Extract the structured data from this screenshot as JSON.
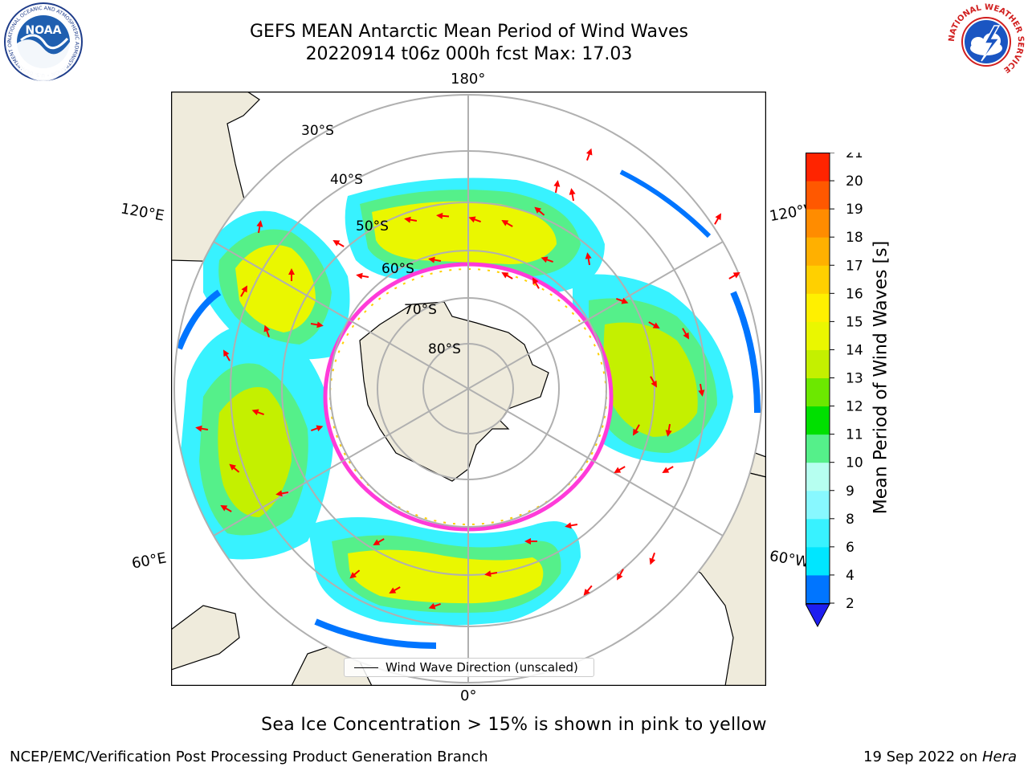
{
  "title": {
    "line1": "GEFS MEAN Antarctic Mean Period of Wind Waves",
    "line2": "20220914 t06z 000h fcst   Max: 17.03"
  },
  "map": {
    "projection": "south-polar-stereographic",
    "longitude_labels": {
      "top": "180°",
      "bottom": "0°",
      "left_upper": "120°E",
      "right_upper": "120°W",
      "left_lower": "60°E",
      "right_lower": "60°W"
    },
    "latitude_labels": [
      "30°S",
      "40°S",
      "50°S",
      "60°S",
      "70°S",
      "80°S"
    ],
    "legend_label": "Wind Wave Direction (unscaled)",
    "colors": {
      "land": "#efebdc",
      "graticule": "#b0b0b0",
      "arrow": "#ff0000",
      "ice_edge": "#ff3bd9"
    }
  },
  "colorbar": {
    "label": "Mean Period of Wind Waves [s]",
    "ticks": [
      "2",
      "4",
      "6",
      "8",
      "9",
      "10",
      "11",
      "12",
      "13",
      "14",
      "15",
      "16",
      "17",
      "18",
      "19",
      "20",
      "21"
    ],
    "colors": [
      "#0075ff",
      "#00e6ff",
      "#38f2ff",
      "#88f8ff",
      "#b6fff0",
      "#55f08a",
      "#00e000",
      "#6ce800",
      "#c4f000",
      "#eaf700",
      "#fff000",
      "#ffd000",
      "#ffb000",
      "#ff8c00",
      "#ff5800",
      "#ff2400"
    ],
    "extend_color": "#1e1ef0"
  },
  "footer": {
    "note": "Sea Ice Concentration > 15% is shown in pink to yellow",
    "left": "NCEP/EMC/Verification Post Processing Product Generation Branch",
    "right_prefix": "19 Sep 2022 on ",
    "right_host": "Hera"
  },
  "logos": {
    "noaa": "NOAA",
    "noaa_ring": "NATIONAL OCEANIC AND ATMOSPHERIC ADMINISTRATION • U.S. DEPARTMENT OF COMMERCE",
    "nws_ring": "NATIONAL WEATHER SERVICE"
  }
}
